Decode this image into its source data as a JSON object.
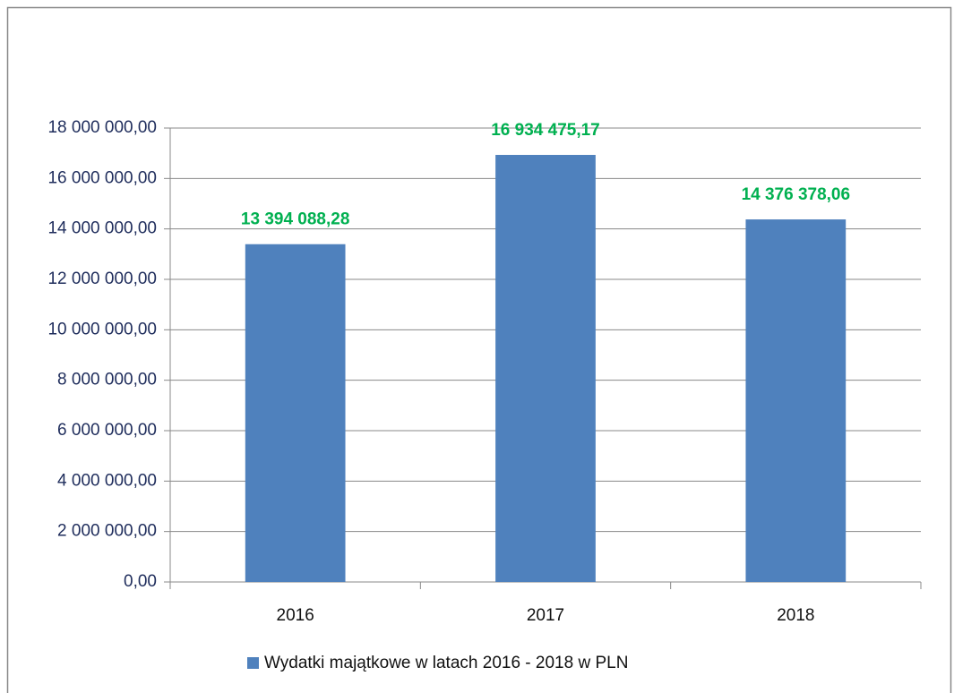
{
  "chart_data": {
    "type": "bar",
    "categories": [
      "2016",
      "2017",
      "2018"
    ],
    "series": [
      {
        "name": "Wydatki majątkowe w latach 2016 - 2018 w PLN",
        "color": "#4f81bd",
        "values": [
          13394088.28,
          16934475.17,
          14376378.06
        ],
        "value_labels": [
          "13 394 088,28",
          "16 934 475,17",
          "14 376 378,06"
        ]
      }
    ],
    "ylim": [
      0,
      18000000
    ],
    "yticks": [
      {
        "value": 0,
        "label": "0,00"
      },
      {
        "value": 2000000,
        "label": "2 000 000,00"
      },
      {
        "value": 4000000,
        "label": "4 000 000,00"
      },
      {
        "value": 6000000,
        "label": "6 000 000,00"
      },
      {
        "value": 8000000,
        "label": "8 000 000,00"
      },
      {
        "value": 10000000,
        "label": "10 000 000,00"
      },
      {
        "value": 12000000,
        "label": "12 000 000,00"
      },
      {
        "value": 14000000,
        "label": "14 000 000,00"
      },
      {
        "value": 16000000,
        "label": "16 000 000,00"
      },
      {
        "value": 18000000,
        "label": "18 000 000,00"
      }
    ],
    "grid": true,
    "legend": "bottom"
  }
}
